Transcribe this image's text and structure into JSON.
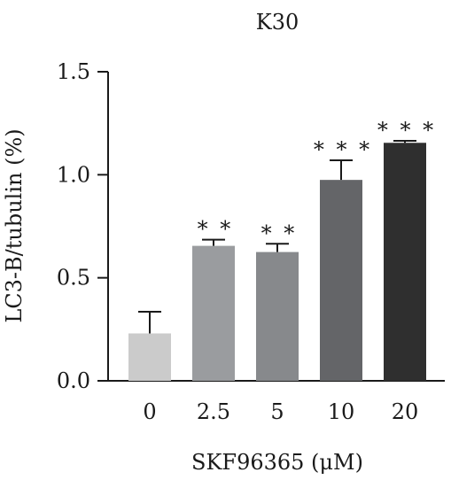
{
  "chart_data": {
    "type": "bar",
    "title": "K30",
    "xlabel": "SKF96365 (μM)",
    "ylabel": "LC3-B/tubulin (%)",
    "ylim": [
      0,
      1.5
    ],
    "yticks": [
      "0.0",
      "0.5",
      "1.0",
      "1.5"
    ],
    "categories": [
      "0",
      "2.5",
      "5",
      "10",
      "20"
    ],
    "values": [
      0.23,
      0.655,
      0.625,
      0.975,
      1.155
    ],
    "error": [
      0.105,
      0.03,
      0.04,
      0.095,
      0.01
    ],
    "significance": [
      "",
      "**",
      "**",
      "***",
      "***"
    ],
    "colors": [
      "#cbcbcb",
      "#9a9c9f",
      "#87898c",
      "#646568",
      "#2f2f2f"
    ],
    "grid": false,
    "legend": "none"
  }
}
